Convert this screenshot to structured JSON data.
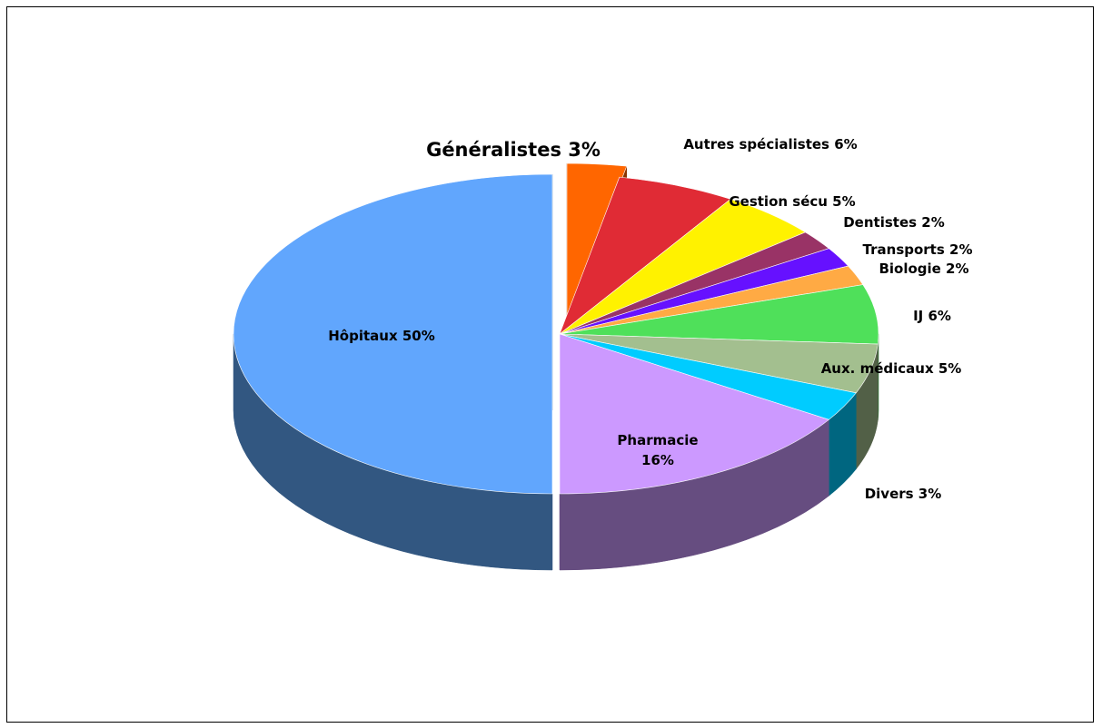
{
  "chart_data": {
    "type": "pie",
    "three_d": true,
    "title": "",
    "legend": "none",
    "slices": [
      {
        "label": "Généralistes 3%",
        "value": 3,
        "color": "#ff6600",
        "side": "#883300",
        "exploded": true
      },
      {
        "label": "Autres spécialistes 6%",
        "value": 6,
        "color": "#e02b35",
        "side": "#7a1419"
      },
      {
        "label": "Gestion sécu 5%",
        "value": 5,
        "color": "#fff200",
        "side": "#888000"
      },
      {
        "label": "Dentistes 2%",
        "value": 2,
        "color": "#993366",
        "side": "#4d1a33"
      },
      {
        "label": "Transports 2%",
        "value": 2,
        "color": "#6611ff",
        "side": "#330888"
      },
      {
        "label": "Biologie 2%",
        "value": 2,
        "color": "#ffaa44",
        "side": "#885522"
      },
      {
        "label": "IJ 6%",
        "value": 6,
        "color": "#4fe05a",
        "side": "#27702d"
      },
      {
        "label": "Aux. médicaux 5%",
        "value": 5,
        "color": "#a3bf8f",
        "side": "#526047"
      },
      {
        "label": "Divers 3%",
        "value": 3,
        "color": "#00ccff",
        "side": "#006680"
      },
      {
        "label": [
          "Pharmacie",
          "16%"
        ],
        "value": 16,
        "color": "#cc99ff",
        "side": "#664d80"
      },
      {
        "label": "Hôpitaux 50%",
        "value": 50,
        "color": "#61a6fd",
        "side": "#325781",
        "exploded": true
      }
    ]
  }
}
